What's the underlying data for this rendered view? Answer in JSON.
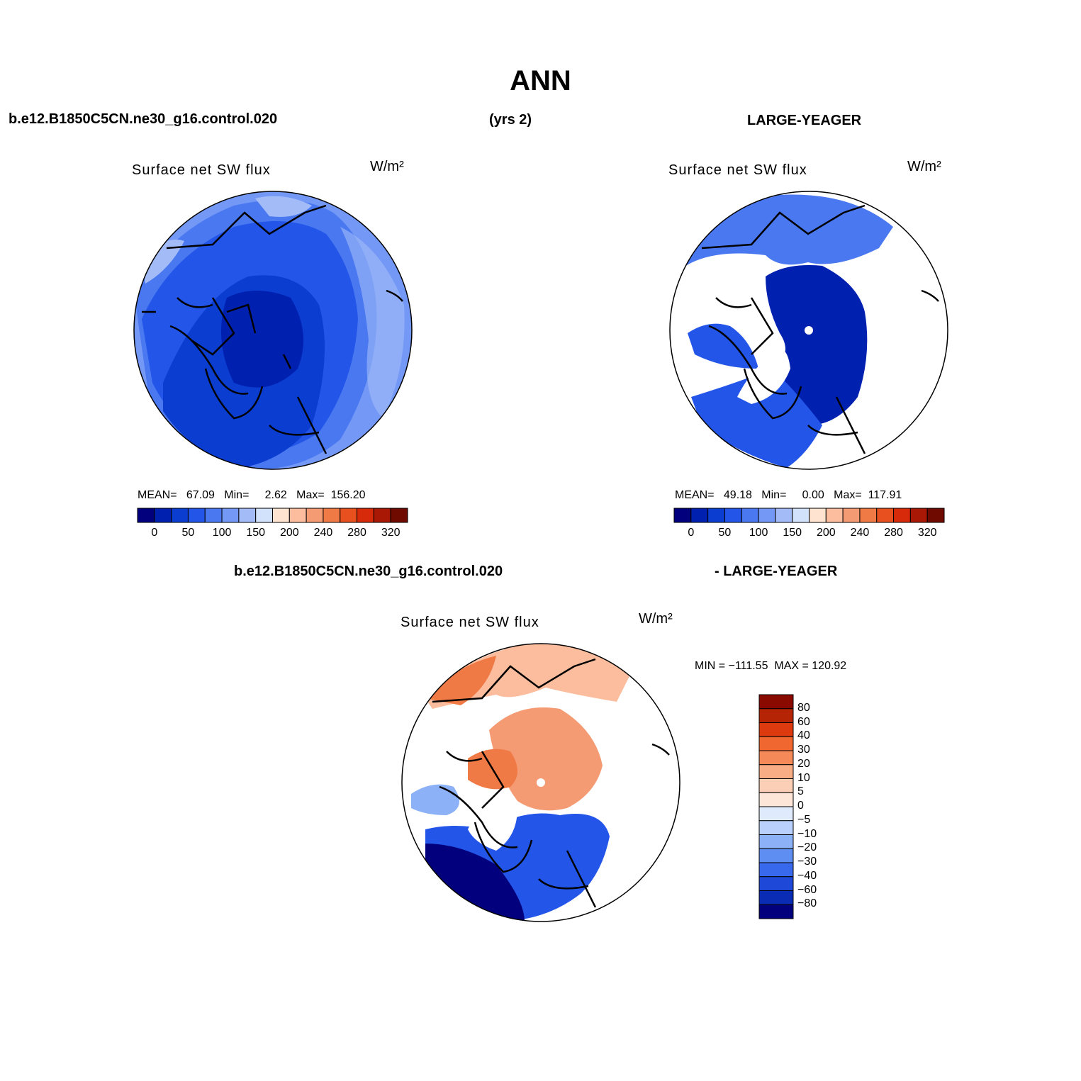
{
  "title": "ANN",
  "header": {
    "left": "b.e12.B1850C5CN.ne30_g16.control.020",
    "center": "(yrs 2)",
    "right": "LARGE-YEAGER"
  },
  "diff_header": {
    "left": "b.e12.B1850C5CN.ne30_g16.control.020",
    "right": "- LARGE-YEAGER"
  },
  "panels": [
    {
      "title": "Surface net SW flux",
      "units": "W/m²",
      "stats": "MEAN=   67.09   Min=     2.62   Max=  156.20"
    },
    {
      "title": "Surface net SW flux",
      "units": "W/m²",
      "stats": "MEAN=   49.18   Min=     0.00   Max=  117.91"
    },
    {
      "title": "Surface net SW flux",
      "units": "W/m²",
      "stats": "MIN = −111.55  MAX = 120.92"
    }
  ],
  "colorbar_abs": {
    "colors": [
      "#02007d",
      "#0020b0",
      "#0a3dd0",
      "#2355e8",
      "#4a78f0",
      "#7498f5",
      "#a3bcf8",
      "#d2e2fb",
      "#fde3d0",
      "#fbbd9d",
      "#f59b73",
      "#f07a45",
      "#e8511f",
      "#d72a0a",
      "#a81805",
      "#6e0a00"
    ],
    "labels": [
      "0",
      "50",
      "100",
      "150",
      "200",
      "240",
      "280",
      "320"
    ]
  },
  "colorbar_diff": {
    "colors": [
      "#8b0a00",
      "#b52405",
      "#de3a10",
      "#f06830",
      "#f58a58",
      "#f8ad85",
      "#fbcfb5",
      "#fde6d8",
      "#dfeafc",
      "#b8d0fb",
      "#8db1f7",
      "#5f8ef3",
      "#3868ec",
      "#1e48d8",
      "#0a2cb4",
      "#02007d"
    ],
    "labels": [
      "80",
      "60",
      "40",
      "30",
      "20",
      "10",
      "5",
      "0",
      "−5",
      "−10",
      "−20",
      "−30",
      "−40",
      "−60",
      "−80"
    ]
  }
}
